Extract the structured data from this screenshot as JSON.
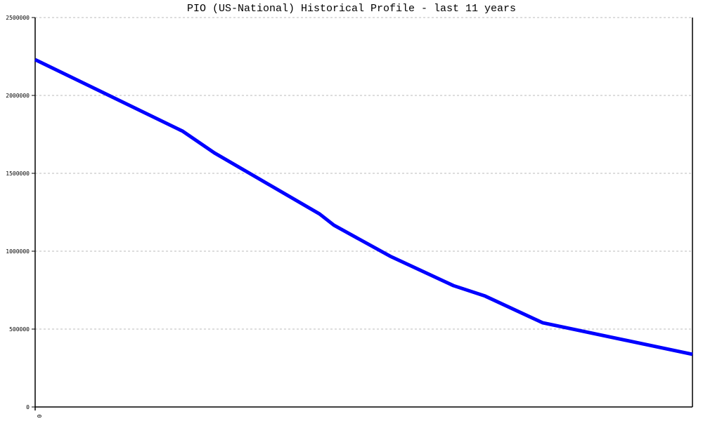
{
  "chart_data": {
    "type": "line",
    "title": "PIO (US-National) Historical Profile - last 11 years",
    "xlabel": "",
    "ylabel": "",
    "xlim": [
      0,
      11
    ],
    "ylim": [
      0,
      2500000
    ],
    "yticks": [
      0,
      500000,
      1000000,
      1500000,
      2000000,
      2500000
    ],
    "ytick_labels": [
      "0",
      "500000",
      "1000000",
      "1500000",
      "2000000",
      "2500000"
    ],
    "xtick_labels": [
      "0"
    ],
    "grid": "horizontal dotted",
    "line_color": "#0000ff",
    "series": [
      {
        "x": [
          0,
          2.47,
          3.0,
          4.76,
          5.0,
          5.94,
          7.0,
          7.53,
          8.49,
          11
        ],
        "values": [
          2230000,
          1770000,
          1631000,
          1239000,
          1167000,
          968000,
          779000,
          712000,
          541000,
          338000
        ]
      }
    ]
  }
}
